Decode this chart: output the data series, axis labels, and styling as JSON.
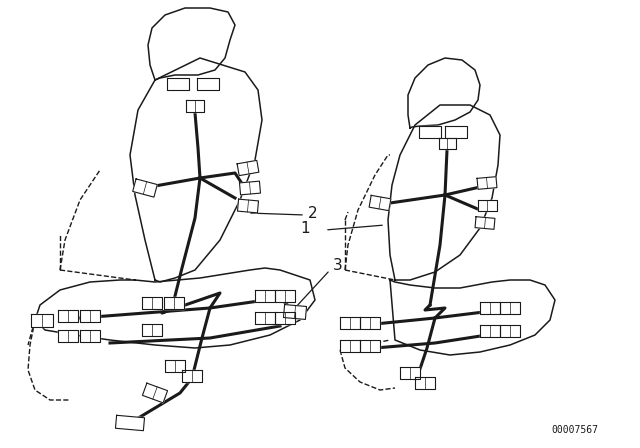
{
  "bg_color": "#ffffff",
  "line_color": "#1a1a1a",
  "part_number": "00007567",
  "figsize": [
    6.4,
    4.48
  ],
  "dpi": 100
}
